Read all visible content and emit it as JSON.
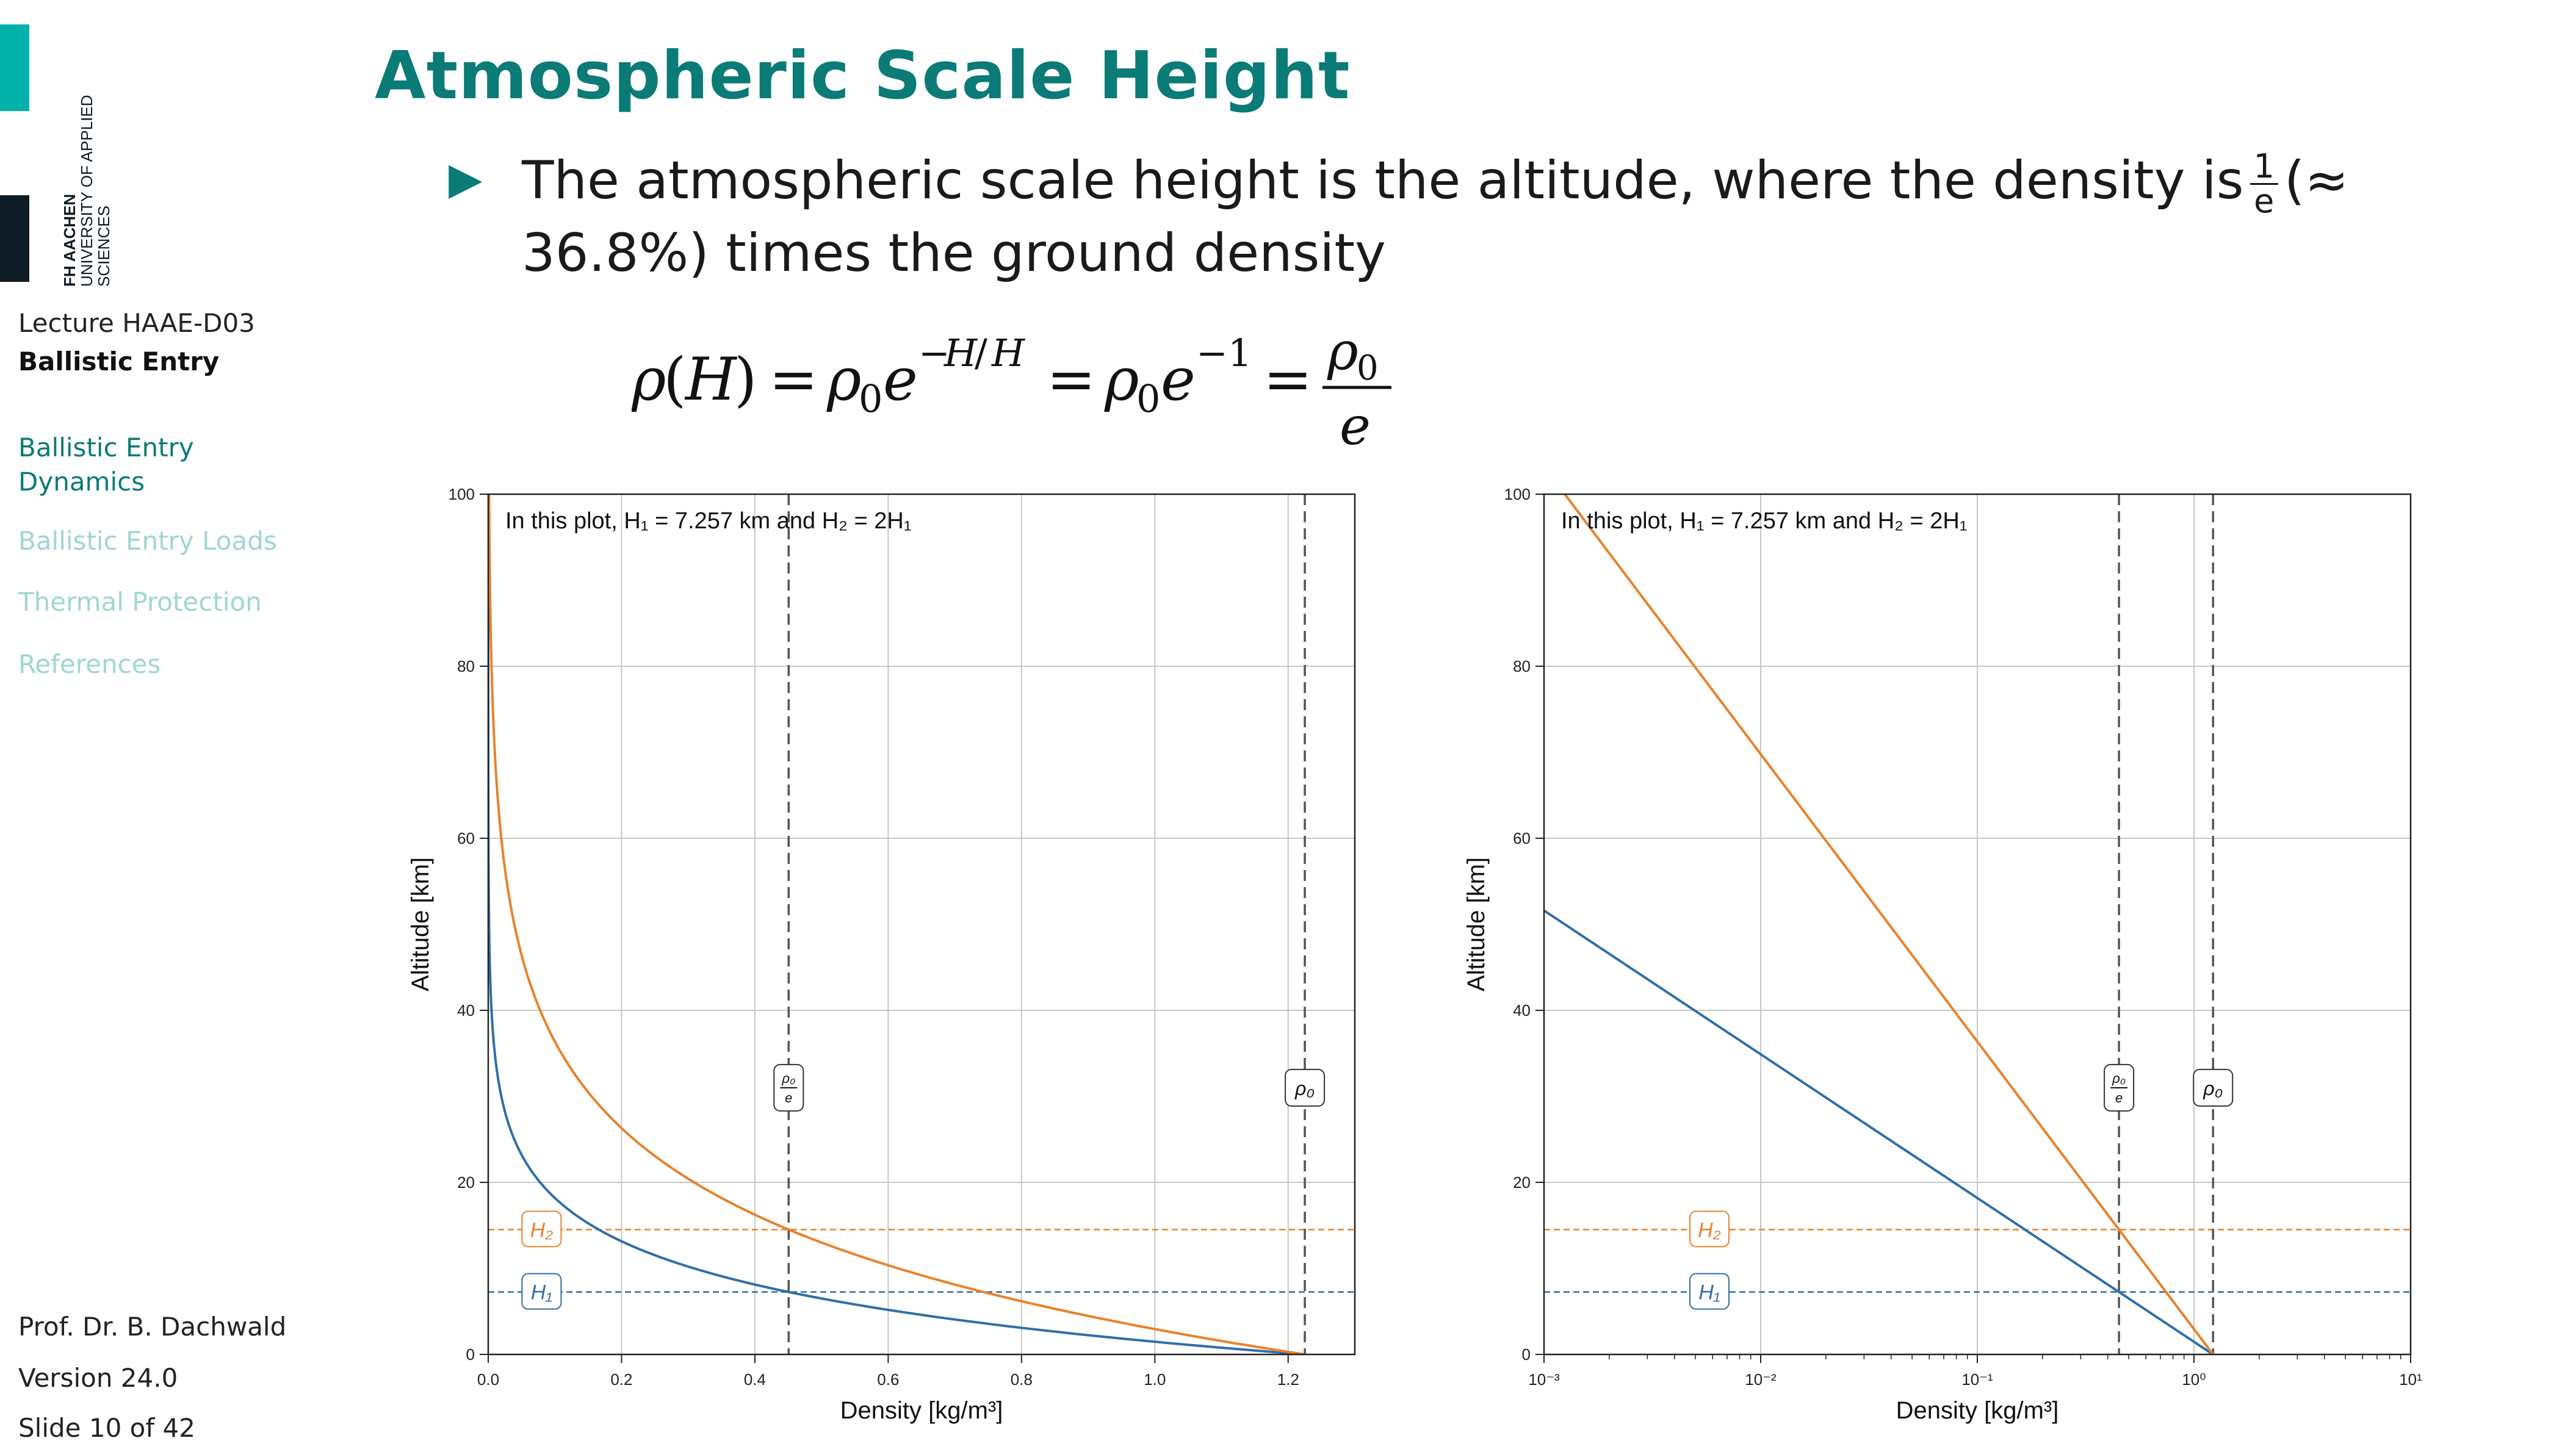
{
  "logo": {
    "name": "FH AACHEN",
    "subtitle": "UNIVERSITY OF APPLIED SCIENCES"
  },
  "sidebar": {
    "lecture_code": "Lecture HAAE-D03",
    "lecture_title": "Ballistic Entry",
    "nav": [
      {
        "label": "Ballistic Entry Dynamics",
        "active": true
      },
      {
        "label": "Ballistic Entry Loads",
        "active": false
      },
      {
        "label": "Thermal Protection",
        "active": false
      },
      {
        "label": "References",
        "active": false
      }
    ],
    "author": "Prof. Dr. B. Dachwald",
    "version": "Version 24.0",
    "slide": "Slide 10 of 42"
  },
  "slide": {
    "title": "Atmospheric Scale Height",
    "bullet_a": "The atmospheric scale height is the altitude, where the density is",
    "bullet_frac_num": "1",
    "bullet_frac_den": "e",
    "bullet_b": "(≈ 36.8%) times the ground density"
  },
  "colors": {
    "accent": "#0a7b76",
    "nav_inactive": "#9fd6d2",
    "H1": "#2f6fa8",
    "H2": "#e8822b"
  },
  "chart_data": [
    {
      "type": "line",
      "xscale": "linear",
      "xlim": [
        0,
        1.3
      ],
      "ylim": [
        0,
        100
      ],
      "xticks": [
        0.0,
        0.2,
        0.4,
        0.6,
        0.8,
        1.0,
        1.2
      ],
      "xtick_labels": [
        "0.0",
        "0.2",
        "0.4",
        "0.6",
        "0.8",
        "1.0",
        "1.2"
      ],
      "yticks": [
        0,
        20,
        40,
        60,
        80,
        100
      ],
      "ytick_labels": [
        "0",
        "20",
        "40",
        "60",
        "80",
        "100"
      ],
      "xlabel": "Density [kg/m³]",
      "ylabel": "Altitude [km]",
      "annotation": "In this plot, H₁ = 7.257 km and H₂ = 2H₁",
      "grid": true,
      "rho0": 1.225,
      "series": [
        {
          "name": "H₁",
          "scale_height_km": 7.257,
          "color": "#2f6fa8"
        },
        {
          "name": "H₂",
          "scale_height_km": 14.514,
          "color": "#e8822b"
        }
      ],
      "vlines": [
        {
          "x": 0.4507,
          "label": "ρ₀/e"
        },
        {
          "x": 1.225,
          "label": "ρ₀"
        }
      ],
      "hlines": [
        {
          "y": 7.257,
          "label": "H₁",
          "color": "#2f6fa8"
        },
        {
          "y": 14.514,
          "label": "H₂",
          "color": "#e8822b"
        }
      ]
    },
    {
      "type": "line",
      "xscale": "log",
      "xlim": [
        0.001,
        10
      ],
      "ylim": [
        0,
        100
      ],
      "xticks": [
        0.001,
        0.01,
        0.1,
        1,
        10
      ],
      "xtick_labels": [
        "10⁻³",
        "10⁻²",
        "10⁻¹",
        "10⁰",
        "10¹"
      ],
      "yticks": [
        0,
        20,
        40,
        60,
        80,
        100
      ],
      "ytick_labels": [
        "0",
        "20",
        "40",
        "60",
        "80",
        "100"
      ],
      "xlabel": "Density [kg/m³]",
      "ylabel": "Altitude [km]",
      "annotation": "In this plot, H₁ = 7.257 km and H₂ = 2H₁",
      "grid": true,
      "rho0": 1.225,
      "series": [
        {
          "name": "H₁",
          "scale_height_km": 7.257,
          "color": "#2f6fa8"
        },
        {
          "name": "H₂",
          "scale_height_km": 14.514,
          "color": "#e8822b"
        }
      ],
      "vlines": [
        {
          "x": 0.4507,
          "label": "ρ₀/e"
        },
        {
          "x": 1.225,
          "label": "ρ₀"
        }
      ],
      "hlines": [
        {
          "y": 7.257,
          "label": "H₁",
          "color": "#2f6fa8"
        },
        {
          "y": 14.514,
          "label": "H₂",
          "color": "#e8822b"
        }
      ]
    }
  ]
}
